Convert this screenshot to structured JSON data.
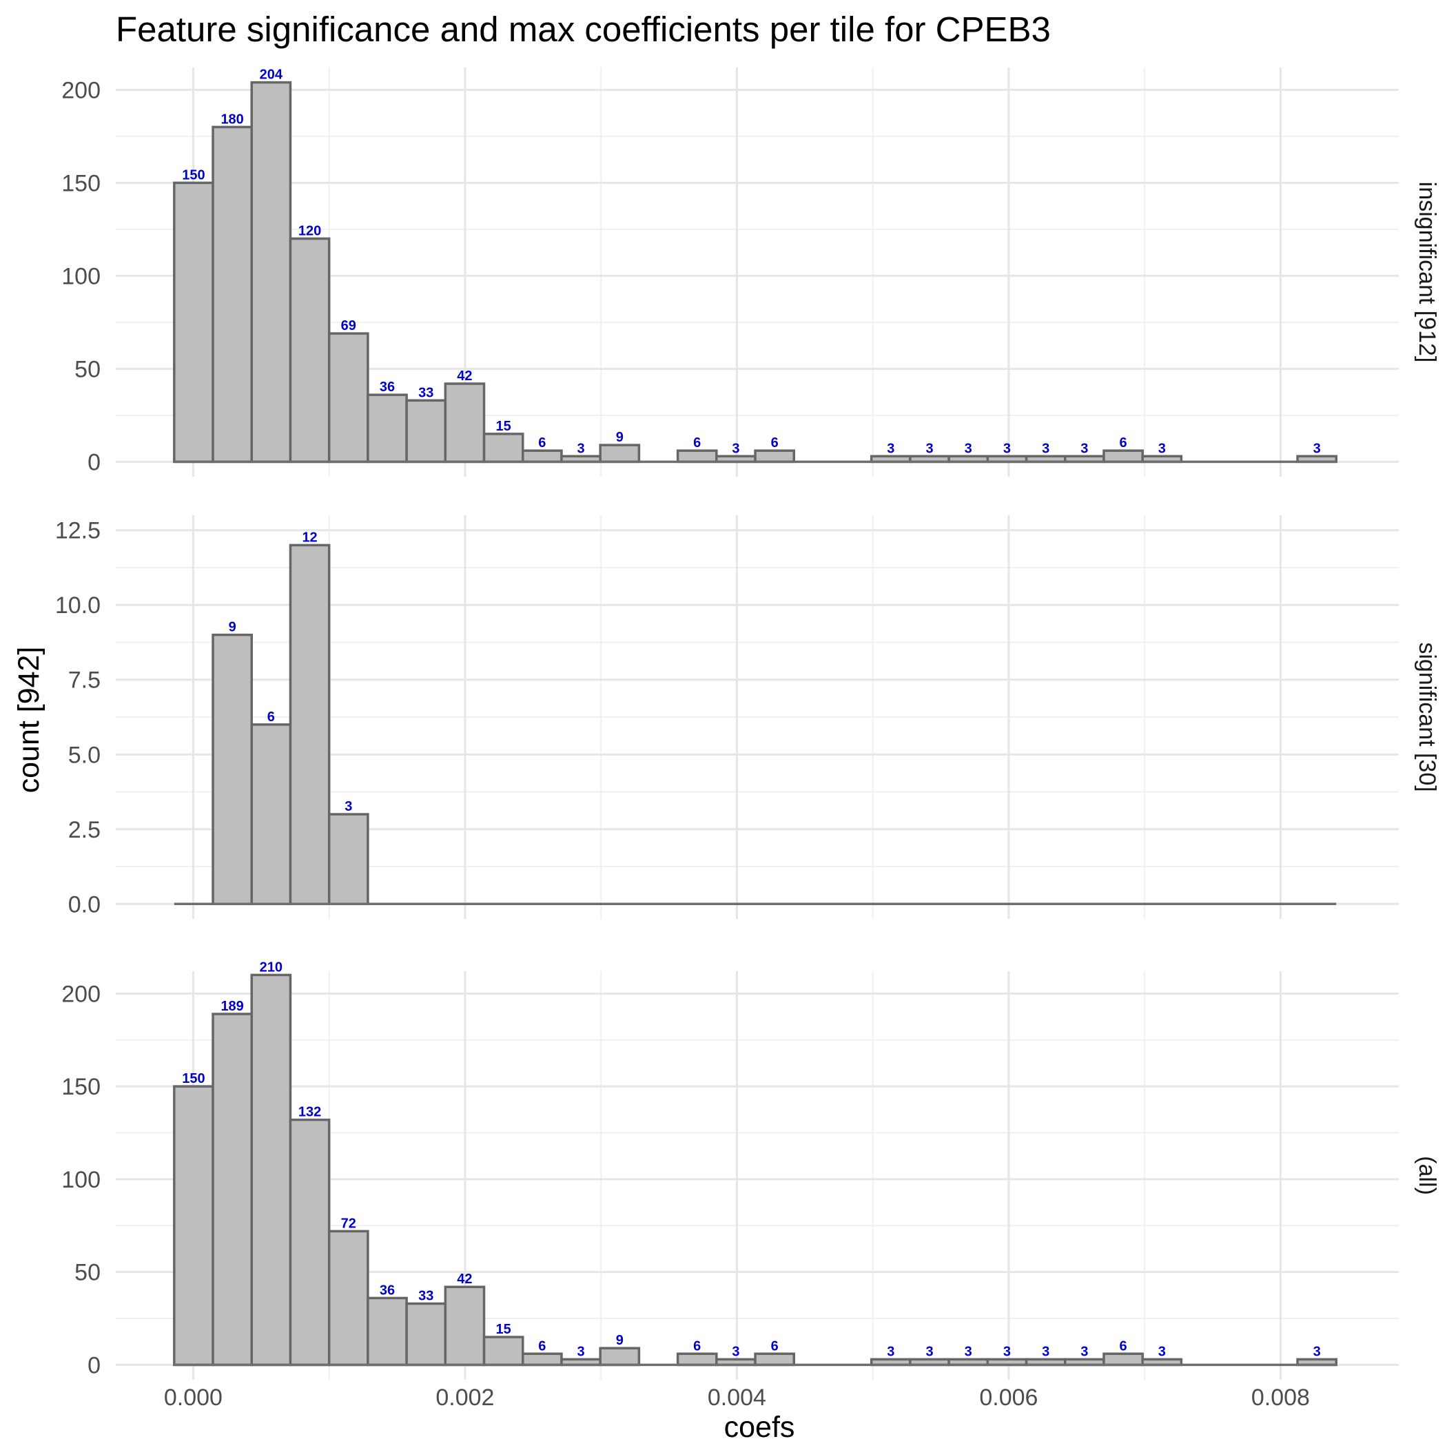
{
  "chart_data": {
    "type": "bar",
    "title": "Feature significance and max coefficients per tile for CPEB3",
    "xlabel": "coefs",
    "ylabel": "count [942]",
    "xlim": [
      -0.00057,
      0.00887
    ],
    "x_ticks": [
      "0.000",
      "0.002",
      "0.004",
      "0.006",
      "0.008"
    ],
    "x_tick_values": [
      0.0,
      0.002,
      0.004,
      0.006,
      0.008
    ],
    "bins": {
      "start": -0.00014,
      "width": 0.000285,
      "count": 30
    },
    "grid": true,
    "panels": [
      {
        "strip_label": "insignificant [912]",
        "ylim": [
          -8,
          212
        ],
        "y_ticks": [
          "0",
          "50",
          "100",
          "150",
          "200"
        ],
        "y_tick_values": [
          0,
          50,
          100,
          150,
          200
        ],
        "values": [
          150,
          180,
          204,
          120,
          69,
          36,
          33,
          42,
          15,
          6,
          3,
          9,
          0,
          6,
          3,
          6,
          0,
          0,
          3,
          3,
          3,
          3,
          3,
          3,
          6,
          3,
          0,
          0,
          0,
          3
        ]
      },
      {
        "strip_label": "significant [30]",
        "ylim": [
          -0.5,
          13.0
        ],
        "y_ticks": [
          "0.0",
          "2.5",
          "5.0",
          "7.5",
          "10.0",
          "12.5"
        ],
        "y_tick_values": [
          0,
          2.5,
          5,
          7.5,
          10,
          12.5
        ],
        "values": [
          0,
          9,
          6,
          12,
          3,
          0,
          0,
          0,
          0,
          0,
          0,
          0,
          0,
          0,
          0,
          0,
          0,
          0,
          0,
          0,
          0,
          0,
          0,
          0,
          0,
          0,
          0,
          0,
          0,
          0
        ]
      },
      {
        "strip_label": "(all)",
        "ylim": [
          -8,
          212
        ],
        "y_ticks": [
          "0",
          "50",
          "100",
          "150",
          "200"
        ],
        "y_tick_values": [
          0,
          50,
          100,
          150,
          200
        ],
        "values": [
          150,
          189,
          210,
          132,
          72,
          36,
          33,
          42,
          15,
          6,
          3,
          9,
          0,
          6,
          3,
          6,
          0,
          0,
          3,
          3,
          3,
          3,
          3,
          3,
          6,
          3,
          0,
          0,
          0,
          3
        ]
      }
    ]
  },
  "colors": {
    "bar_fill": "#bebebe",
    "bar_outline": "#666666",
    "label_color": "#0000cc",
    "grid_major": "#e6e6e6",
    "grid_minor": "#f0f0f0",
    "background": "#ffffff"
  }
}
